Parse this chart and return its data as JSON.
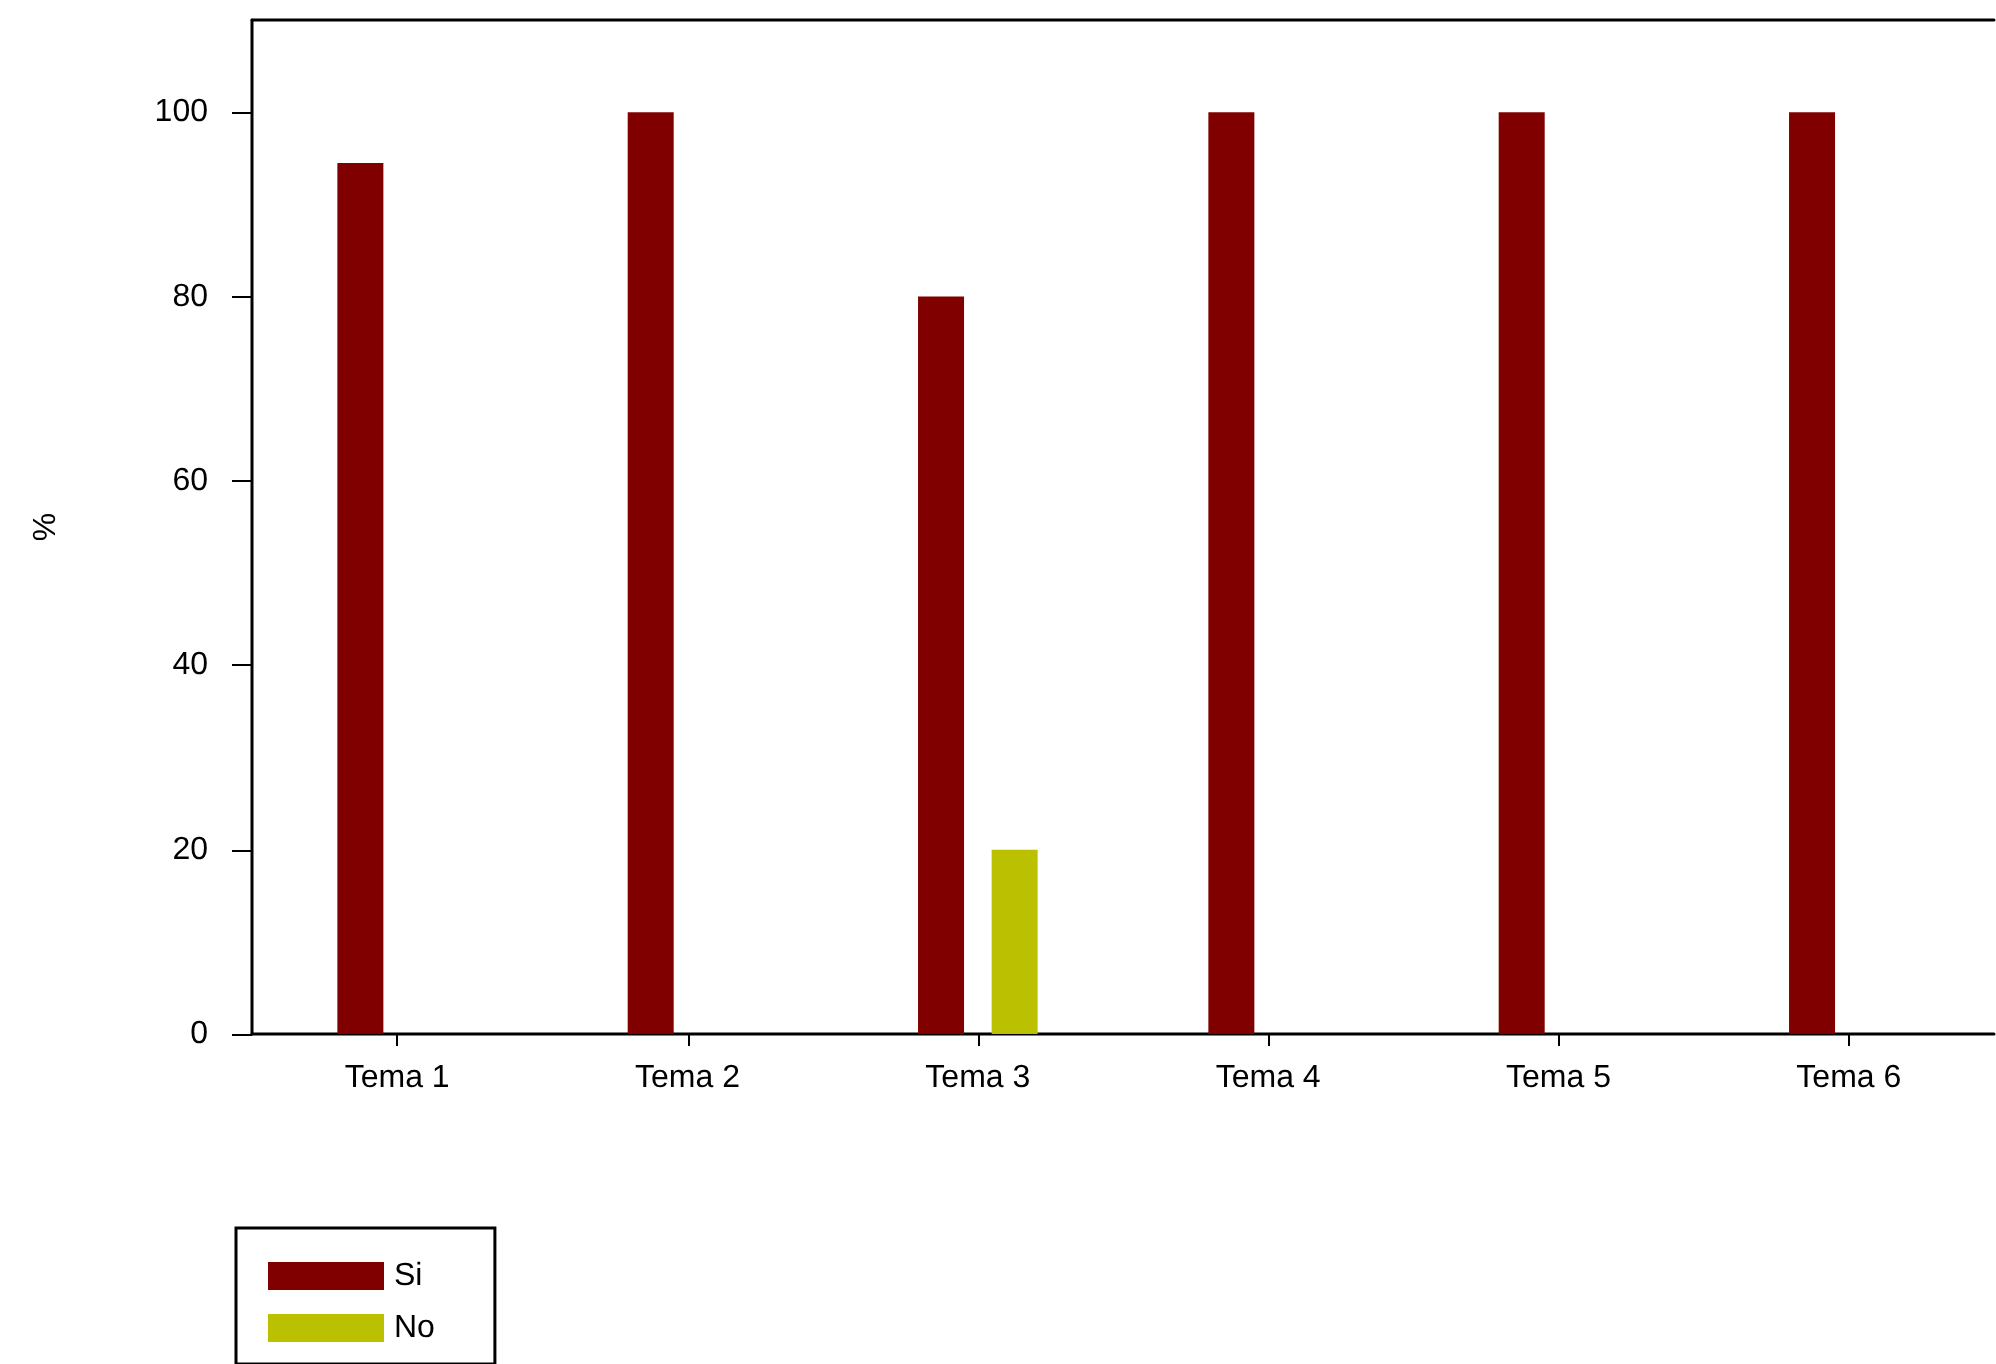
{
  "chart_data": {
    "type": "bar",
    "ylabel": "%",
    "categories": [
      "Tema 1",
      "Tema 2",
      "Tema 3",
      "Tema 4",
      "Tema 5",
      "Tema 6"
    ],
    "series": [
      {
        "name": "Si",
        "color": "#800000",
        "values": [
          94.5,
          100,
          80,
          100,
          100,
          100
        ]
      },
      {
        "name": "No",
        "color": "#bbc000",
        "values": [
          0,
          0,
          20,
          0,
          0,
          0
        ]
      }
    ],
    "ylim": [
      0,
      110
    ],
    "yticks": [
      0,
      20,
      40,
      60,
      80,
      100
    ],
    "grid": false,
    "legend": "bottom left"
  }
}
